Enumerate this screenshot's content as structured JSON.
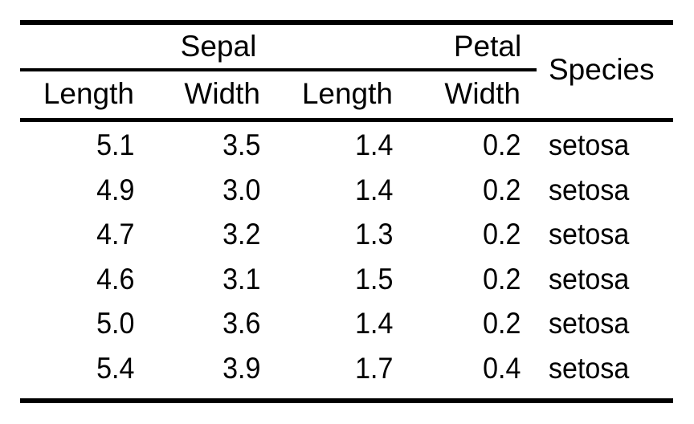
{
  "colors": {
    "background": "#ffffff",
    "text": "#000000",
    "rules": "#000000"
  },
  "table": {
    "spanner_sepal": "Sepal",
    "spanner_petal": "Petal",
    "species_header": "Species",
    "subheaders": [
      "Length",
      "Width",
      "Length",
      "Width"
    ],
    "rows": [
      [
        "5.1",
        "3.5",
        "1.4",
        "0.2",
        "setosa"
      ],
      [
        "4.9",
        "3.0",
        "1.4",
        "0.2",
        "setosa"
      ],
      [
        "4.7",
        "3.2",
        "1.3",
        "0.2",
        "setosa"
      ],
      [
        "4.6",
        "3.1",
        "1.5",
        "0.2",
        "setosa"
      ],
      [
        "5.0",
        "3.6",
        "1.4",
        "0.2",
        "setosa"
      ],
      [
        "5.4",
        "3.9",
        "1.7",
        "0.4",
        "setosa"
      ]
    ]
  },
  "chart_data": {
    "type": "table",
    "title": "",
    "column_groups": [
      {
        "label": "Sepal",
        "columns": [
          "Length",
          "Width"
        ]
      },
      {
        "label": "Petal",
        "columns": [
          "Length",
          "Width"
        ]
      },
      {
        "label": "Species",
        "columns": [
          "Species"
        ]
      }
    ],
    "columns": [
      "Sepal Length",
      "Sepal Width",
      "Petal Length",
      "Petal Width",
      "Species"
    ],
    "rows": [
      [
        5.1,
        3.5,
        1.4,
        0.2,
        "setosa"
      ],
      [
        4.9,
        3.0,
        1.4,
        0.2,
        "setosa"
      ],
      [
        4.7,
        3.2,
        1.3,
        0.2,
        "setosa"
      ],
      [
        4.6,
        3.1,
        1.5,
        0.2,
        "setosa"
      ],
      [
        5.0,
        3.6,
        1.4,
        0.2,
        "setosa"
      ],
      [
        5.4,
        3.9,
        1.7,
        0.4,
        "setosa"
      ]
    ]
  }
}
